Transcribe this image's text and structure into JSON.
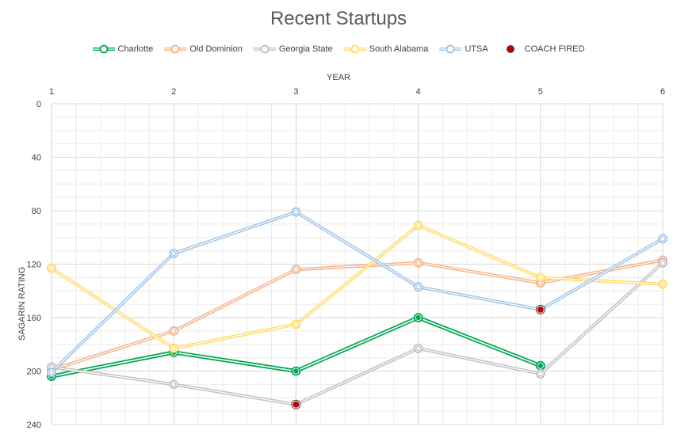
{
  "chart_data": {
    "type": "line",
    "title": "Recent Startups",
    "xlabel": "YEAR",
    "ylabel": "SAGARIN RATING",
    "x": [
      1,
      2,
      3,
      4,
      5,
      6
    ],
    "ylim": [
      0,
      240
    ],
    "y_inverted": true,
    "y_ticks": [
      0,
      40,
      80,
      120,
      160,
      200,
      240
    ],
    "grid": true,
    "legend_position": "top",
    "series": [
      {
        "name": "Charlotte",
        "color": "#00a651",
        "values": [
          204,
          186,
          200,
          160,
          196,
          null
        ]
      },
      {
        "name": "Old Dominion",
        "color": "#f4b183",
        "values": [
          199,
          170,
          124,
          119,
          134,
          117
        ]
      },
      {
        "name": "Georgia State",
        "color": "#bfbfbf",
        "values": [
          197,
          210,
          225,
          183,
          202,
          119
        ]
      },
      {
        "name": "South Alabama",
        "color": "#ffd966",
        "values": [
          123,
          183,
          165,
          91,
          130,
          135
        ]
      },
      {
        "name": "UTSA",
        "color": "#9dc3e6",
        "values": [
          201,
          112,
          81,
          137,
          154,
          101
        ]
      },
      {
        "name": "COACH FIRED",
        "color": "#c00000",
        "marker_only": true,
        "points": [
          {
            "x": 3,
            "y": 225
          },
          {
            "x": 5,
            "y": 154
          }
        ]
      }
    ]
  }
}
